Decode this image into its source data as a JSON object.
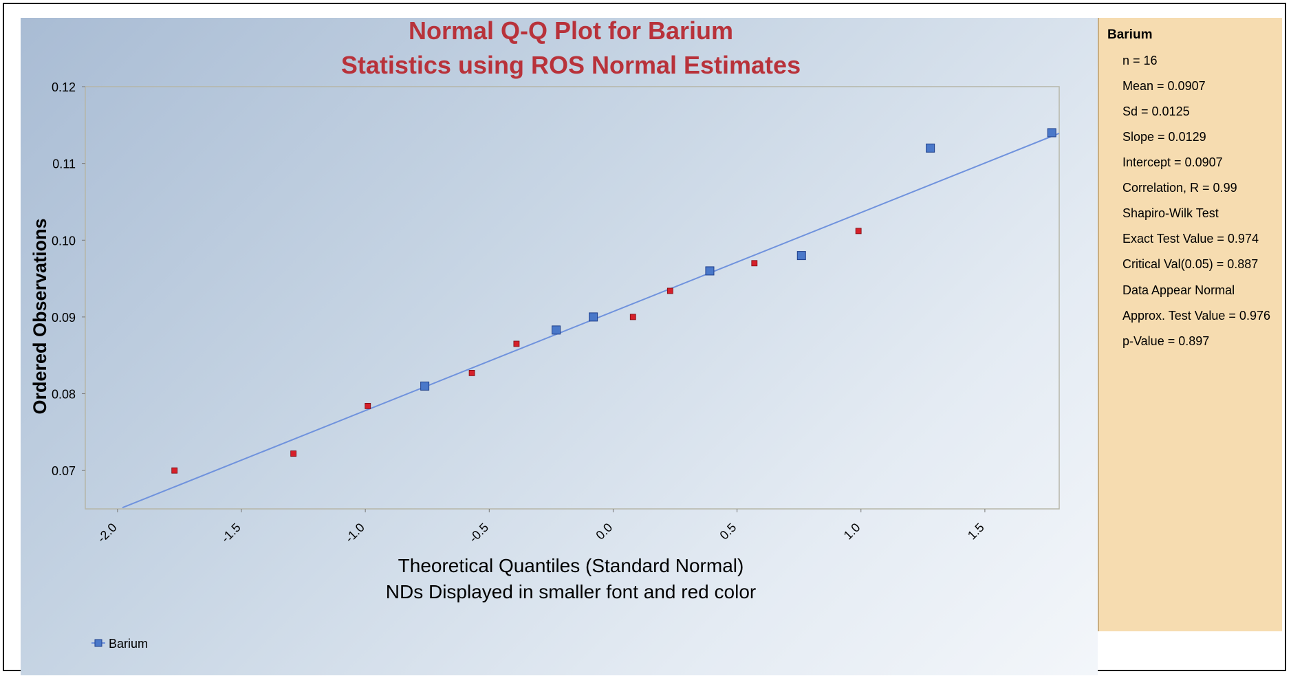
{
  "chart_data": {
    "type": "scatter",
    "title": "Normal Q-Q Plot for Barium",
    "subtitle": "Statistics using ROS Normal Estimates",
    "xlabel": "Theoretical Quantiles (Standard Normal)",
    "xlabel_note": "NDs Displayed in smaller font and red color",
    "ylabel": "Ordered Observations",
    "xlim": [
      -2.13,
      1.8
    ],
    "ylim": [
      0.065,
      0.12
    ],
    "x_ticks": [
      "-2.0",
      "-1.5",
      "-1.0",
      "-0.5",
      "0.0",
      "0.5",
      "1.0",
      "1.5"
    ],
    "y_ticks": [
      "0.07",
      "0.08",
      "0.09",
      "0.10",
      "0.11",
      "0.12"
    ],
    "grid": false,
    "legend_position": "bottom-left",
    "series": [
      {
        "name": "Barium",
        "color": "#4a78c9",
        "detects": [
          {
            "x": -0.76,
            "y": 0.081
          },
          {
            "x": -0.23,
            "y": 0.0883
          },
          {
            "x": -0.08,
            "y": 0.09
          },
          {
            "x": 0.39,
            "y": 0.096
          },
          {
            "x": 0.76,
            "y": 0.098
          },
          {
            "x": 1.28,
            "y": 0.112
          },
          {
            "x": 1.77,
            "y": 0.114
          }
        ],
        "nondetects": [
          {
            "x": -1.77,
            "y": 0.07
          },
          {
            "x": -1.29,
            "y": 0.0722
          },
          {
            "x": -0.99,
            "y": 0.0784
          },
          {
            "x": -0.57,
            "y": 0.0827
          },
          {
            "x": -0.39,
            "y": 0.0865
          },
          {
            "x": 0.08,
            "y": 0.09
          },
          {
            "x": 0.23,
            "y": 0.0934
          },
          {
            "x": 0.57,
            "y": 0.097
          },
          {
            "x": 0.99,
            "y": 0.1012
          }
        ],
        "nondetect_color": "#d6202a",
        "fit_line": {
          "slope": 0.0129,
          "intercept": 0.0907
        }
      }
    ]
  },
  "stats": {
    "title": "Barium",
    "lines": [
      "n = 16",
      "Mean = 0.0907",
      "Sd = 0.0125",
      "Slope = 0.0129",
      "Intercept = 0.0907",
      "Correlation, R = 0.99",
      "Shapiro-Wilk Test",
      "Exact Test Value = 0.974",
      "Critical Val(0.05) = 0.887",
      "Data Appear Normal",
      "Approx. Test Value = 0.976",
      "p-Value = 0.897"
    ]
  },
  "legend": {
    "label": "Barium"
  }
}
